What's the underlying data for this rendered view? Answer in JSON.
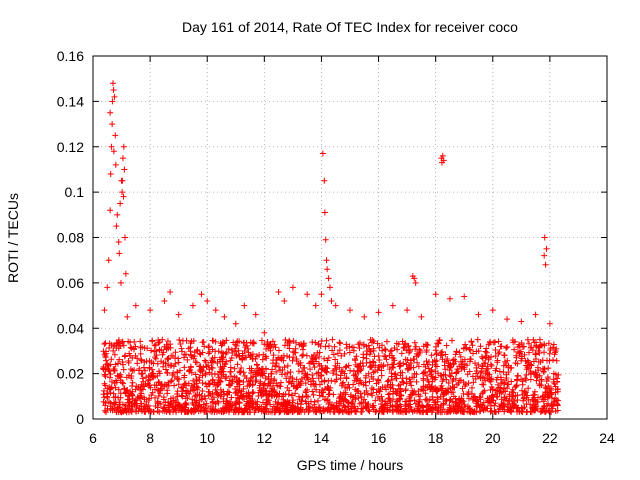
{
  "chart_data": {
    "type": "scatter",
    "title": "Day 161 of 2014, Rate Of TEC Index for receiver coco",
    "xlabel": "GPS time / hours",
    "ylabel": "ROTI / TECUs",
    "xlim": [
      6,
      24
    ],
    "ylim": [
      0,
      0.16
    ],
    "x_ticks": [
      6,
      8,
      10,
      12,
      14,
      16,
      18,
      20,
      22,
      24
    ],
    "x_tick_labels": [
      "6",
      "8",
      "10",
      "12",
      "14",
      "16",
      "18",
      "20",
      "22",
      "24"
    ],
    "y_ticks": [
      0,
      0.02,
      0.04,
      0.06,
      0.08,
      0.1,
      0.12,
      0.14,
      0.16
    ],
    "y_tick_labels": [
      "0",
      "0.02",
      "0.04",
      "0.06",
      "0.08",
      "0.1",
      "0.12",
      "0.14",
      "0.16"
    ],
    "grid": true,
    "legend": "none",
    "marker": "plus",
    "series": [
      {
        "name": "ROTI",
        "color": "#ff0000",
        "x": [
          6.4,
          6.5,
          6.55,
          6.6,
          6.62,
          6.65,
          6.67,
          6.7,
          6.72,
          6.75,
          6.78,
          6.8,
          6.85,
          6.9,
          6.95,
          7.0,
          7.02,
          7.05,
          7.08,
          7.1,
          7.12,
          7.15,
          7.2,
          6.6,
          6.68,
          6.73,
          6.82,
          6.92,
          6.98,
          7.03,
          7.07,
          14.0,
          14.05,
          14.1,
          14.12,
          14.15,
          14.18,
          14.2,
          14.25,
          14.3,
          14.35,
          18.2,
          18.22,
          18.25,
          18.28,
          21.8,
          21.82,
          21.85,
          21.88,
          17.2,
          17.25,
          17.3,
          7.5,
          8.0,
          8.5,
          8.7,
          9.0,
          9.5,
          9.8,
          10.0,
          10.3,
          10.6,
          11.0,
          11.3,
          11.7,
          12.0,
          12.5,
          12.7,
          13.0,
          13.5,
          13.8,
          14.5,
          15.0,
          15.5,
          16.0,
          16.5,
          17.0,
          17.5,
          18.0,
          18.5,
          19.0,
          19.5,
          20.0,
          20.5,
          21.0,
          21.5,
          22.0,
          22.2
        ],
        "y": [
          0.048,
          0.058,
          0.07,
          0.092,
          0.108,
          0.12,
          0.13,
          0.148,
          0.145,
          0.142,
          0.125,
          0.112,
          0.09,
          0.078,
          0.095,
          0.105,
          0.1,
          0.115,
          0.12,
          0.11,
          0.08,
          0.064,
          0.045,
          0.135,
          0.14,
          0.118,
          0.085,
          0.073,
          0.06,
          0.105,
          0.098,
          0.055,
          0.117,
          0.105,
          0.091,
          0.079,
          0.07,
          0.066,
          0.062,
          0.058,
          0.052,
          0.115,
          0.113,
          0.116,
          0.114,
          0.072,
          0.08,
          0.068,
          0.075,
          0.063,
          0.062,
          0.06,
          0.05,
          0.048,
          0.052,
          0.056,
          0.046,
          0.05,
          0.055,
          0.052,
          0.048,
          0.045,
          0.042,
          0.05,
          0.046,
          0.038,
          0.056,
          0.052,
          0.058,
          0.055,
          0.05,
          0.05,
          0.048,
          0.045,
          0.047,
          0.05,
          0.048,
          0.045,
          0.055,
          0.053,
          0.054,
          0.046,
          0.048,
          0.044,
          0.043,
          0.046,
          0.042,
          0.03
        ]
      }
    ],
    "dense_band": {
      "x_range": [
        6.35,
        22.3
      ],
      "y_range": [
        0.003,
        0.035
      ]
    }
  }
}
